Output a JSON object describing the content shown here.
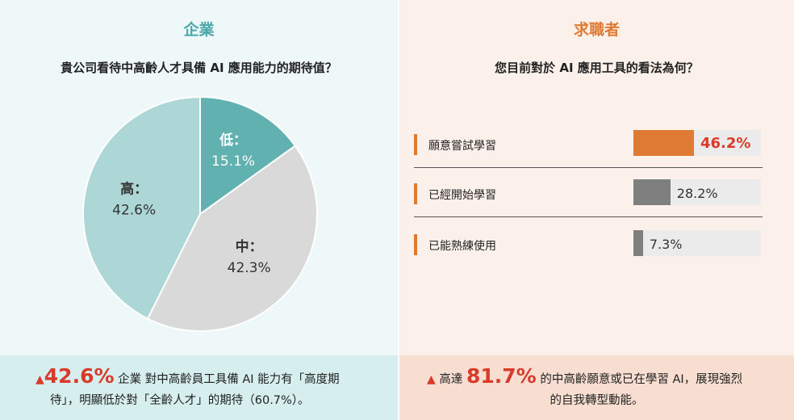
{
  "left_panel": {
    "title": "企業",
    "question": "貴公司看待中高齡人才具備 AI 應用能力的期待值？",
    "footer": {
      "marker": "▲",
      "highlight": "42.6%",
      "line1": "企業 對中高齡員工具備 AI 能力有「高度期",
      "line2": "待」，明顯低於對「全齡人才」的期待（60.7%）。"
    }
  },
  "right_panel": {
    "title": "求職者",
    "question": "您目前對於 AI 應用工具的看法為何？",
    "footer": {
      "marker": "▲",
      "prefix": "高達",
      "highlight": "81.7%",
      "line1": "的中高齡願意或已在學習 AI，展現強烈",
      "line2": "的自我轉型動能。"
    }
  },
  "chart_data": [
    {
      "type": "pie",
      "slices": [
        {
          "name": "低：",
          "value": 15.1,
          "label": "15.1%",
          "color": "#62b1b1",
          "text_color": "#ffffff"
        },
        {
          "name": "中：",
          "value": 42.3,
          "label": "42.3%",
          "color": "#d9d9d9",
          "text_color": "#333333"
        },
        {
          "name": "高：",
          "value": 42.6,
          "label": "42.6%",
          "color": "#add6d6",
          "text_color": "#333333"
        }
      ],
      "start_angle_deg": 0,
      "direction": "clockwise"
    },
    {
      "type": "bar",
      "orientation": "horizontal",
      "categories": [
        "願意嘗試學習",
        "已經開始學習",
        "已能熟練使用"
      ],
      "values": [
        46.2,
        28.2,
        7.3
      ],
      "value_labels": [
        "46.2%",
        "28.2%",
        "7.3%"
      ],
      "colors": [
        "#de7a33",
        "#7f7f7f",
        "#7f7f7f"
      ],
      "highlight_index": 0,
      "xlim": [
        0,
        100
      ]
    }
  ]
}
